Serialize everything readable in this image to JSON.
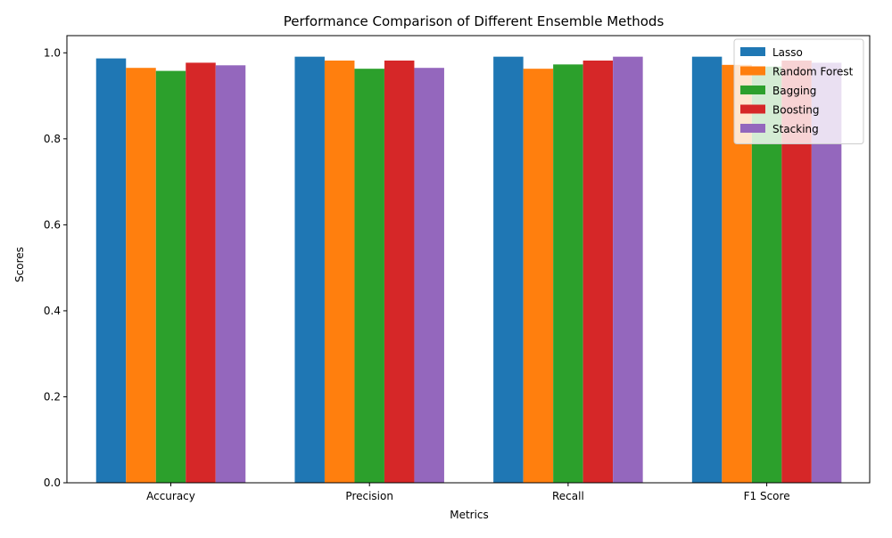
{
  "chart_data": {
    "type": "bar",
    "title": "Performance Comparison of Different Ensemble Methods",
    "xlabel": "Metrics",
    "ylabel": "Scores",
    "categories": [
      "Accuracy",
      "Precision",
      "Recall",
      "F1 Score"
    ],
    "ylim": [
      0,
      1.04
    ],
    "yticks": [
      "0.0",
      "0.2",
      "0.4",
      "0.6",
      "0.8",
      "1.0"
    ],
    "grid": false,
    "legend_position": "top-right",
    "series": [
      {
        "name": "Lasso",
        "color": "#1f77b4",
        "values": [
          0.987,
          0.991,
          0.991,
          0.991
        ]
      },
      {
        "name": "Random Forest",
        "color": "#ff7f0e",
        "values": [
          0.965,
          0.982,
          0.963,
          0.972
        ]
      },
      {
        "name": "Bagging",
        "color": "#2ca02c",
        "values": [
          0.958,
          0.963,
          0.973,
          0.968
        ]
      },
      {
        "name": "Boosting",
        "color": "#d62728",
        "values": [
          0.977,
          0.982,
          0.982,
          0.982
        ]
      },
      {
        "name": "Stacking",
        "color": "#9467bd",
        "values": [
          0.971,
          0.965,
          0.991,
          0.977
        ]
      }
    ]
  }
}
